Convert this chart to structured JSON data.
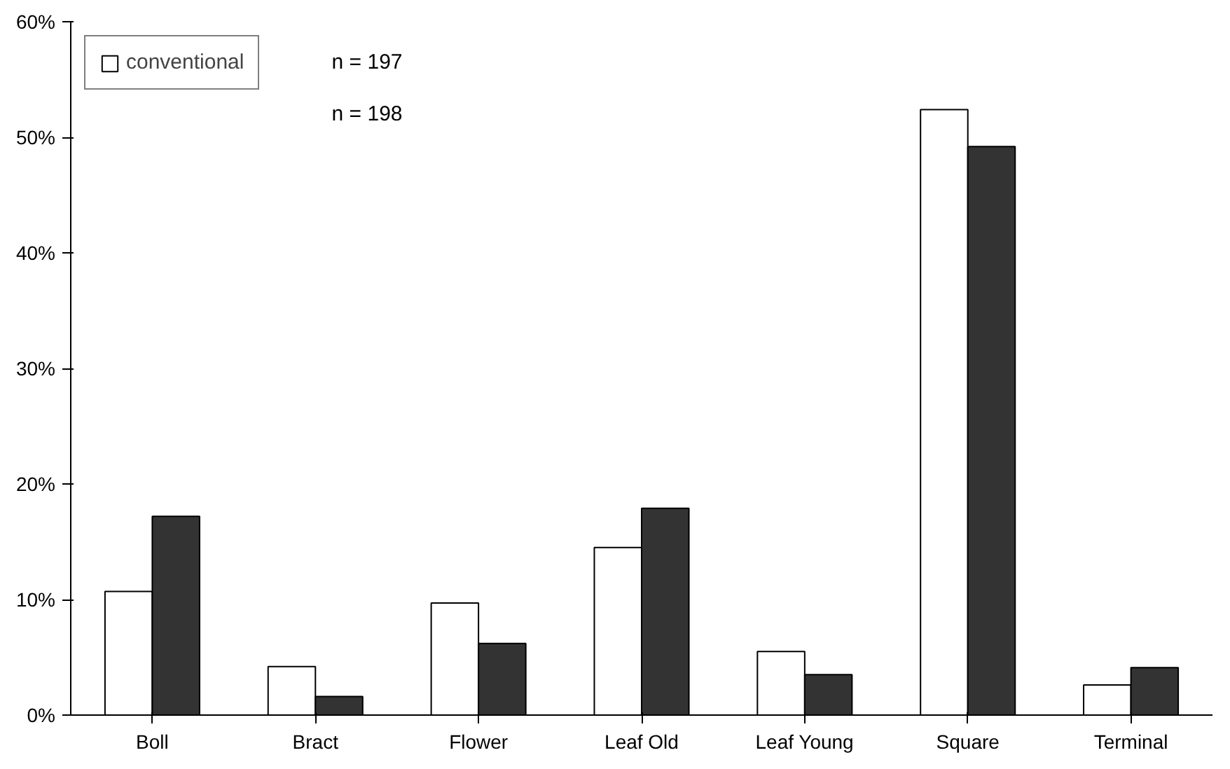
{
  "chart_data": {
    "type": "bar",
    "categories": [
      "Boll",
      "Bract",
      "Flower",
      "Leaf Old",
      "Leaf Young",
      "Square",
      "Terminal"
    ],
    "series": [
      {
        "name": "conventional",
        "color": "#ffffff",
        "values": [
          10.7,
          4.2,
          9.7,
          14.5,
          5.5,
          52.4,
          2.6
        ]
      },
      {
        "color": "#333333",
        "values": [
          17.2,
          1.6,
          6.2,
          17.9,
          3.5,
          49.2,
          4.1
        ]
      }
    ],
    "ylim": [
      0,
      60
    ],
    "yticks": [
      {
        "value": 0,
        "label": "0%"
      },
      {
        "value": 10,
        "label": "10%"
      },
      {
        "value": 20,
        "label": "20%"
      },
      {
        "value": 30,
        "label": "30%"
      },
      {
        "value": 40,
        "label": "40%"
      },
      {
        "value": 50,
        "label": "50%"
      },
      {
        "value": 60,
        "label": "60%"
      }
    ],
    "annotations": [
      "n = 197",
      "n = 198"
    ],
    "legend": "top left",
    "grid": false
  }
}
